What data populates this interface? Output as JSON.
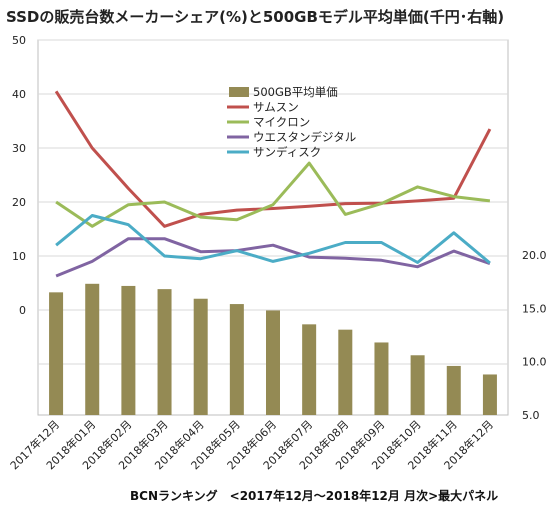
{
  "chart_data": {
    "type": "bar+line",
    "title": "SSDの販売台数メーカーシェア(%)と500GBモデル平均単価(千円･右軸)",
    "footer": "BCNランキング　<2017年12月～2018年12月 月次>最大パネル",
    "categories": [
      "2017年12月",
      "2018年01月",
      "2018年02月",
      "2018年03月",
      "2018年04月",
      "2018年05月",
      "2018年06月",
      "2018年07月",
      "2018年08月",
      "2018年09月",
      "2018年10月",
      "2018年11月",
      "2018年12月"
    ],
    "left_axis": {
      "ticks": [
        "50",
        "40",
        "30",
        "20",
        "10",
        "0"
      ]
    },
    "right_axis": {
      "ticks": [
        "20.0",
        "15.0",
        "10.0",
        "5.0"
      ]
    },
    "bar_series": {
      "name": "500GB平均単価",
      "color": "#948a54",
      "values": [
        16.5,
        17.3,
        17.1,
        16.8,
        15.9,
        15.4,
        14.8,
        13.5,
        13.0,
        11.8,
        10.6,
        9.6,
        8.8
      ]
    },
    "series": [
      {
        "name": "サムスン",
        "color": "#c0504d",
        "values": [
          40.5,
          30.0,
          22.5,
          15.5,
          17.7,
          18.5,
          18.8,
          19.2,
          19.7,
          19.8,
          20.2,
          20.7,
          33.5
        ]
      },
      {
        "name": "マイクロン",
        "color": "#9bbb59",
        "values": [
          20.0,
          15.5,
          19.5,
          20.0,
          17.2,
          16.7,
          19.5,
          27.2,
          17.7,
          19.7,
          22.8,
          21.0,
          20.2
        ]
      },
      {
        "name": "ウエスタンデジタル",
        "color": "#8064a2",
        "values": [
          6.3,
          9.0,
          13.2,
          13.2,
          10.8,
          11.0,
          12.0,
          9.8,
          9.6,
          9.2,
          8.0,
          10.9,
          8.6
        ]
      },
      {
        "name": "サンディスク",
        "color": "#4bacc6",
        "values": [
          12.0,
          17.5,
          15.8,
          10.0,
          9.5,
          11.0,
          9.0,
          10.5,
          12.5,
          12.5,
          8.8,
          14.3,
          8.7
        ]
      }
    ],
    "gridlines": true
  }
}
